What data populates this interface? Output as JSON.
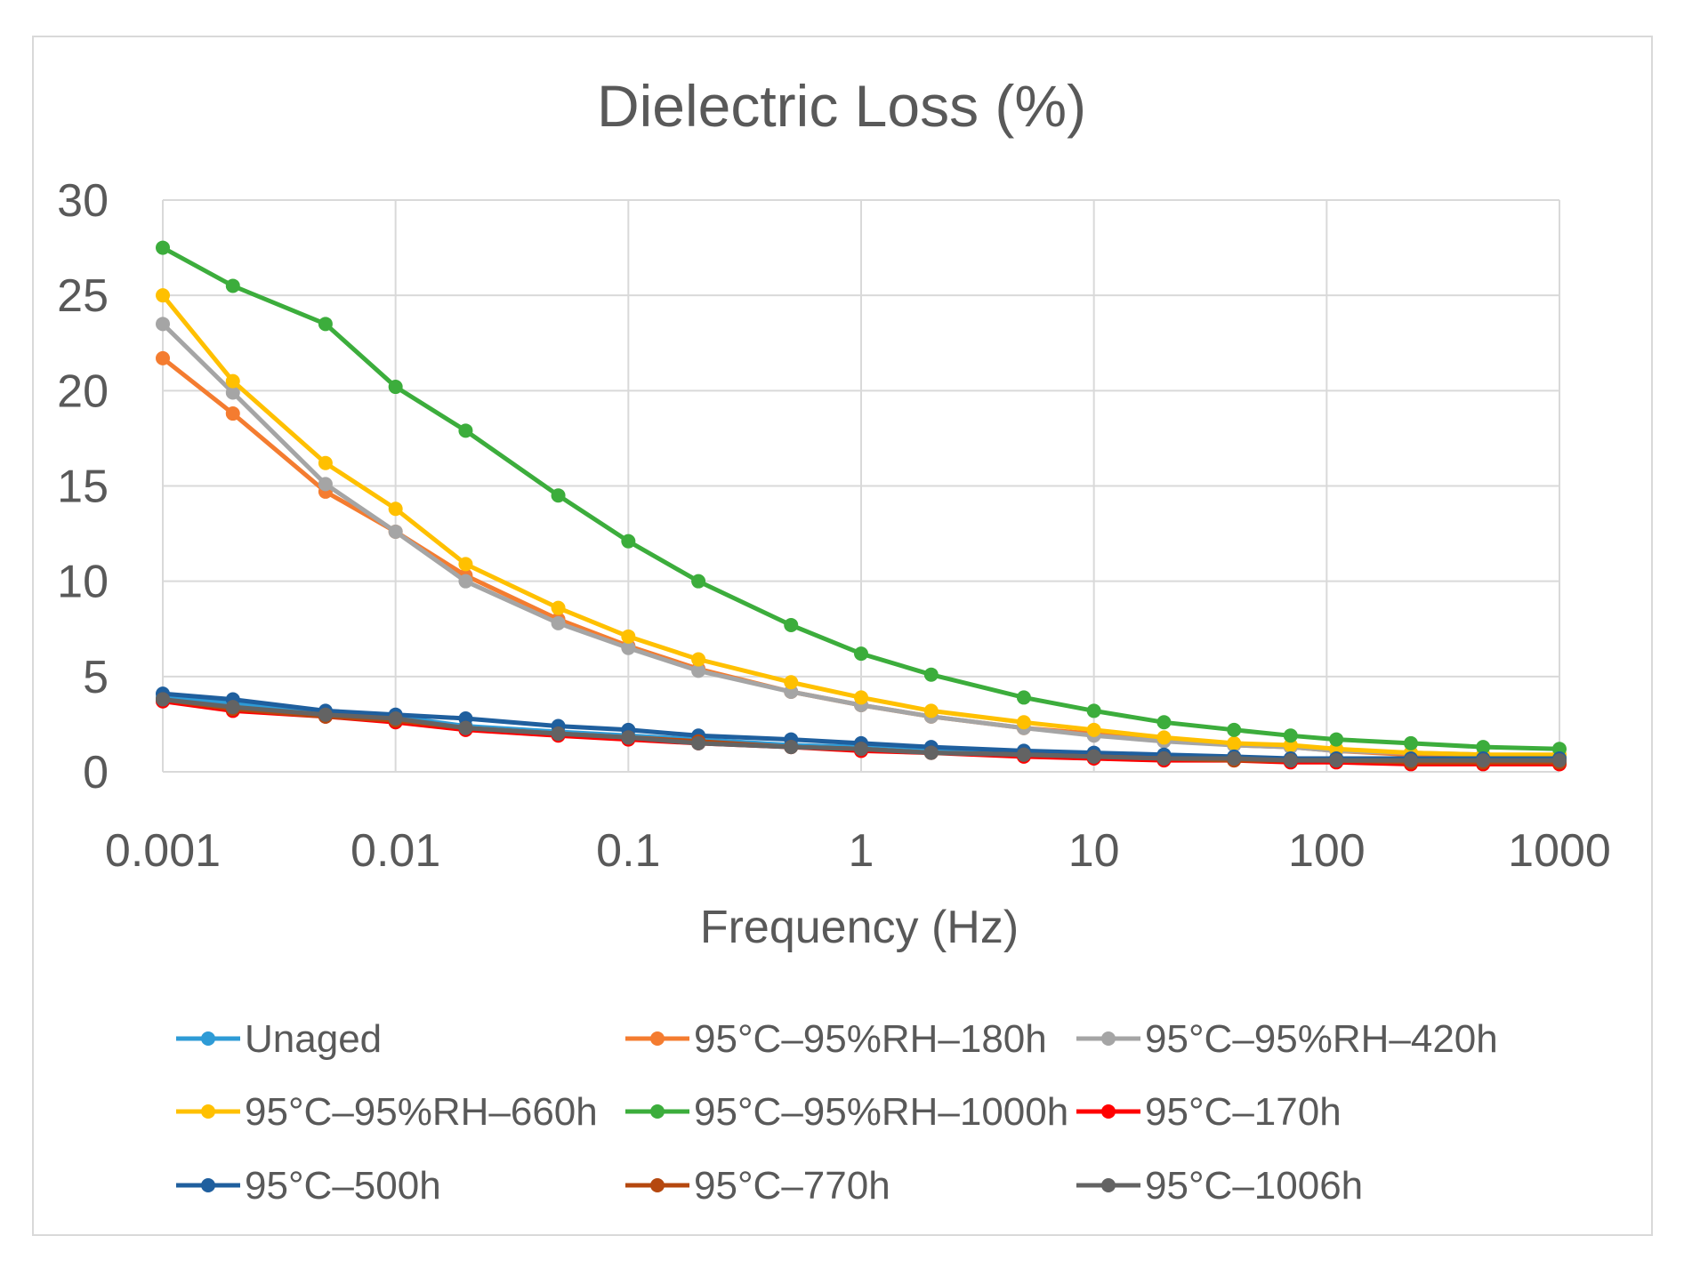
{
  "chart_data": {
    "type": "line",
    "title": "Dielectric Loss (%)",
    "xlabel": "Frequency (Hz)",
    "ylabel": "",
    "xscale": "log",
    "xlim": [
      0.001,
      1000
    ],
    "ylim": [
      0,
      30
    ],
    "xticks": [
      "0.001",
      "0.01",
      "0.1",
      "1",
      "10",
      "100",
      "1000"
    ],
    "yticks": [
      "0",
      "5",
      "10",
      "15",
      "20",
      "25",
      "30"
    ],
    "grid": true,
    "legend_position": "bottom",
    "x": [
      0.001,
      0.002,
      0.005,
      0.01,
      0.02,
      0.05,
      0.1,
      0.2,
      0.5,
      1,
      2,
      5,
      10,
      20,
      40,
      70,
      110,
      230,
      470,
      1000
    ],
    "series": [
      {
        "name": "Unaged",
        "color": "#2e9bd6",
        "values": [
          3.9,
          3.6,
          3.1,
          2.9,
          2.4,
          2.1,
          1.9,
          1.7,
          1.4,
          1.3,
          1.1,
          1.0,
          0.9,
          0.8,
          0.7,
          0.7,
          0.7,
          0.6,
          0.6,
          0.6
        ]
      },
      {
        "name": "95°C–95%RH–180h",
        "color": "#f47c30",
        "values": [
          21.7,
          18.8,
          14.7,
          12.6,
          10.3,
          8.0,
          6.6,
          5.4,
          4.2,
          3.5,
          2.9,
          2.3,
          2.0,
          1.7,
          1.4,
          1.3,
          1.1,
          0.9,
          0.8,
          0.8
        ]
      },
      {
        "name": "95°C–95%RH–420h",
        "color": "#a5a5a5",
        "values": [
          23.5,
          19.9,
          15.1,
          12.6,
          10.0,
          7.8,
          6.5,
          5.3,
          4.2,
          3.5,
          2.9,
          2.3,
          1.9,
          1.6,
          1.4,
          1.3,
          1.1,
          1.0,
          0.9,
          0.8
        ]
      },
      {
        "name": "95°C–95%RH–660h",
        "color": "#ffc000",
        "values": [
          25.0,
          20.5,
          16.2,
          13.8,
          10.9,
          8.6,
          7.1,
          5.9,
          4.7,
          3.9,
          3.2,
          2.6,
          2.2,
          1.8,
          1.5,
          1.4,
          1.2,
          1.0,
          0.9,
          0.9
        ]
      },
      {
        "name": "95°C–95%RH–1000h",
        "color": "#3cad3c",
        "values": [
          27.5,
          25.5,
          23.5,
          20.2,
          17.9,
          14.5,
          12.1,
          10.0,
          7.7,
          6.2,
          5.1,
          3.9,
          3.2,
          2.6,
          2.2,
          1.9,
          1.7,
          1.5,
          1.3,
          1.2
        ]
      },
      {
        "name": "95°C–170h",
        "color": "#ff0000",
        "values": [
          3.7,
          3.2,
          2.9,
          2.6,
          2.2,
          1.9,
          1.7,
          1.5,
          1.3,
          1.1,
          1.0,
          0.8,
          0.7,
          0.6,
          0.6,
          0.5,
          0.5,
          0.4,
          0.4,
          0.4
        ]
      },
      {
        "name": "95°C–500h",
        "color": "#1f5f9e",
        "values": [
          4.1,
          3.8,
          3.2,
          3.0,
          2.8,
          2.4,
          2.2,
          1.9,
          1.7,
          1.5,
          1.3,
          1.1,
          1.0,
          0.9,
          0.8,
          0.7,
          0.7,
          0.7,
          0.7,
          0.7
        ]
      },
      {
        "name": "95°C–770h",
        "color": "#b5480f",
        "values": [
          3.8,
          3.3,
          2.9,
          2.7,
          2.3,
          2.0,
          1.8,
          1.6,
          1.3,
          1.2,
          1.0,
          0.9,
          0.8,
          0.7,
          0.6,
          0.6,
          0.6,
          0.5,
          0.5,
          0.5
        ]
      },
      {
        "name": "95°C–1006h",
        "color": "#636363",
        "values": [
          3.8,
          3.4,
          3.0,
          2.8,
          2.3,
          2.0,
          1.8,
          1.5,
          1.3,
          1.2,
          1.0,
          0.9,
          0.8,
          0.7,
          0.7,
          0.6,
          0.6,
          0.6,
          0.6,
          0.6
        ]
      }
    ]
  }
}
